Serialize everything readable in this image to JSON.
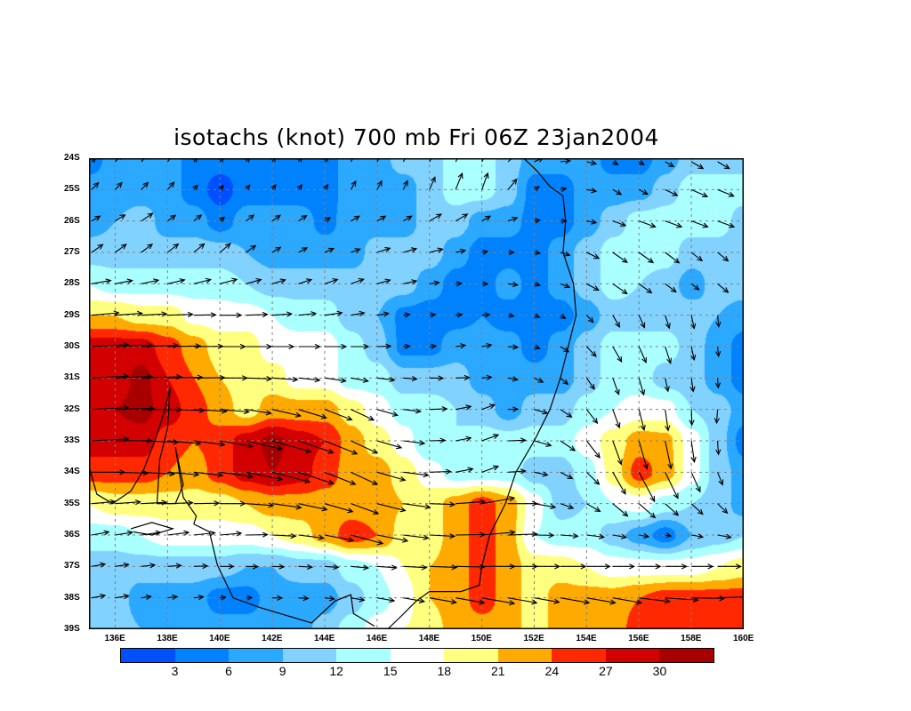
{
  "title": "isotachs (knot) 700 mb Fri 06Z 23jan2004",
  "chart_data": {
    "type": "heatmap",
    "title": "isotachs (knot) 700 mb Fri 06Z 23jan2004",
    "variable": "wind speed (knot)",
    "lon_range": [
      135,
      160
    ],
    "lat_range": [
      -24,
      -39
    ],
    "x_tick_labels": [
      "136E",
      "138E",
      "140E",
      "142E",
      "144E",
      "146E",
      "148E",
      "150E",
      "152E",
      "154E",
      "156E",
      "158E",
      "160E"
    ],
    "y_tick_labels": [
      "24S",
      "25S",
      "26S",
      "27S",
      "28S",
      "29S",
      "30S",
      "31S",
      "32S",
      "33S",
      "34S",
      "35S",
      "36S",
      "37S",
      "38S",
      "39S"
    ],
    "grid": true,
    "colorbar": {
      "levels": [
        3,
        6,
        9,
        12,
        15,
        18,
        21,
        24,
        27,
        30
      ],
      "labels": [
        "3",
        "6",
        "9",
        "12",
        "15",
        "18",
        "21",
        "24",
        "27",
        "30"
      ],
      "colors": [
        "#0050ff",
        "#0082ff",
        "#2ba8ff",
        "#82d2ff",
        "#aaffff",
        "#ffffff",
        "#ffff80",
        "#ffaa00",
        "#ff2800",
        "#d20000",
        "#a80000"
      ]
    },
    "speed_grid_lons": [
      135,
      136,
      137,
      138,
      139,
      140,
      141,
      142,
      143,
      144,
      145,
      146,
      147,
      148,
      149,
      150,
      151,
      152,
      153,
      154,
      155,
      156,
      157,
      158,
      159,
      160
    ],
    "speed_grid_lats": [
      24,
      25,
      26,
      27,
      28,
      29,
      30,
      31,
      32,
      33,
      34,
      35,
      36,
      37,
      38,
      39
    ],
    "speed_grid": [
      [
        4.5,
        7.5,
        7.5,
        7.5,
        4.5,
        4.5,
        4.5,
        4.5,
        4.5,
        4.5,
        7.5,
        7.5,
        10.5,
        10.5,
        13.5,
        13.5,
        10.5,
        7.5,
        7.5,
        7.5,
        4.5,
        4.5,
        7.5,
        10.5,
        10.5,
        10.5
      ],
      [
        7.5,
        7.5,
        7.5,
        7.5,
        4.5,
        1.5,
        4.5,
        4.5,
        4.5,
        4.5,
        7.5,
        7.5,
        7.5,
        10.5,
        13.5,
        13.5,
        10.5,
        4.5,
        4.5,
        7.5,
        7.5,
        7.5,
        10.5,
        13.5,
        13.5,
        13.5
      ],
      [
        7.5,
        9,
        10.5,
        7.5,
        7.5,
        4.5,
        7.5,
        7.5,
        7.5,
        5,
        7.5,
        7.5,
        7.5,
        10.5,
        10.5,
        7.5,
        7.5,
        4.5,
        4.5,
        7.5,
        10.5,
        13.5,
        13.5,
        13.5,
        13.5,
        10.5
      ],
      [
        10.5,
        10.5,
        10.5,
        10.5,
        10.5,
        10.5,
        9,
        7.5,
        7.5,
        7.5,
        7.5,
        10.5,
        10.5,
        10.5,
        7.5,
        4.5,
        4.5,
        4.5,
        7.5,
        10.5,
        13.5,
        13.5,
        13.5,
        10.5,
        10.5,
        9
      ],
      [
        15,
        13.5,
        13.5,
        13.5,
        13.5,
        13.5,
        12,
        10.5,
        10.5,
        10.5,
        10.5,
        10.5,
        10.5,
        7.5,
        4.5,
        4.5,
        7.5,
        4.5,
        7.5,
        10.5,
        13.5,
        12,
        10.5,
        7.5,
        10.5,
        10.5
      ],
      [
        21,
        21,
        19.5,
        19.5,
        17,
        16.5,
        16.5,
        15,
        13.5,
        13.5,
        10.5,
        9,
        5,
        4.5,
        5,
        6,
        4.5,
        4.5,
        4.5,
        7.5,
        10.5,
        10.5,
        10.5,
        10.5,
        9,
        7.5
      ],
      [
        28.5,
        28.5,
        28.5,
        25.5,
        22.5,
        19.5,
        19.5,
        16.5,
        16.5,
        16.5,
        13.5,
        10.5,
        5,
        5,
        7.5,
        7.5,
        7.5,
        4.5,
        7.5,
        10.5,
        13.5,
        13.5,
        13.5,
        10.5,
        7.5,
        4.5
      ],
      [
        28.5,
        28.5,
        31,
        27,
        24,
        21,
        19.5,
        19.5,
        16.5,
        16.5,
        13.5,
        13.5,
        10.5,
        10.5,
        10.5,
        7.5,
        7.5,
        7.5,
        7.5,
        10.5,
        13.5,
        13.5,
        10.5,
        10.5,
        7.5,
        4.5
      ],
      [
        28.5,
        30,
        31,
        28.5,
        25.5,
        22.5,
        19.5,
        22.5,
        22.5,
        22.5,
        19.5,
        16.5,
        13.5,
        13.5,
        12,
        10.5,
        7.5,
        10.5,
        10.5,
        13.5,
        15,
        16.5,
        16.5,
        12,
        10.5,
        7.5
      ],
      [
        28.5,
        28.5,
        28.5,
        25.5,
        24,
        25.5,
        28.5,
        31,
        28.5,
        27,
        22.5,
        19.5,
        16.5,
        12,
        12,
        13.5,
        13.5,
        13.5,
        13.5,
        16.5,
        19.5,
        22.5,
        22,
        16.5,
        10.5,
        4.5
      ],
      [
        25.5,
        25.5,
        25.5,
        24,
        22.5,
        25.5,
        28.5,
        30,
        28.5,
        25.5,
        22.5,
        22.5,
        19.5,
        16.5,
        13.5,
        13.5,
        13.5,
        10.5,
        10.5,
        13.5,
        19.5,
        25.5,
        22.5,
        16.5,
        10.5,
        7.5
      ],
      [
        18,
        19.5,
        19.5,
        19.5,
        19.5,
        19.5,
        21,
        22.5,
        22.5,
        22.5,
        22.5,
        22.5,
        21,
        19.5,
        22.5,
        25.5,
        22.5,
        16.5,
        10.5,
        12,
        15,
        16.5,
        13.5,
        12,
        10.5,
        7.5
      ],
      [
        13.5,
        13.5,
        15,
        16.5,
        16.5,
        16.5,
        16.5,
        18,
        19.5,
        22.5,
        25.5,
        24,
        19.5,
        19.5,
        22.5,
        25.5,
        22.5,
        15,
        13.5,
        13.5,
        10.5,
        7.5,
        4.5,
        9,
        10.5,
        12
      ],
      [
        10.5,
        10.5,
        10.5,
        10.5,
        10.5,
        10.5,
        9,
        9,
        10.5,
        10.5,
        13.5,
        15,
        18,
        21,
        22.5,
        25.5,
        22.5,
        19.5,
        19.5,
        18,
        16.5,
        16.5,
        16.5,
        16.5,
        18,
        19.5
      ],
      [
        10.5,
        10.5,
        7.5,
        7.5,
        7.5,
        4.5,
        4.5,
        7.5,
        7.5,
        7.5,
        10.5,
        13.5,
        16.5,
        21,
        22.5,
        25.5,
        22.5,
        19.5,
        22.5,
        22.5,
        22.5,
        24,
        25.5,
        25.5,
        25.5,
        25.5
      ],
      [
        12,
        10.5,
        9,
        7.5,
        7.5,
        7.5,
        7.5,
        7.5,
        7.5,
        10.5,
        13.5,
        16.5,
        18,
        19.5,
        22.5,
        22.5,
        22.5,
        19.5,
        22.5,
        22.5,
        22.5,
        25.5,
        25.5,
        25.5,
        27,
        25.5
      ]
    ],
    "wind_direction_lons": [
      135,
      140,
      145,
      150,
      155,
      160
    ],
    "wind_direction_deg_toward_ccw_from_east": [
      [
        45,
        55,
        60,
        60,
        -30,
        -30
      ],
      [
        45,
        50,
        60,
        70,
        -30,
        -20
      ],
      [
        30,
        40,
        30,
        30,
        -20,
        -20
      ],
      [
        35,
        40,
        20,
        10,
        -35,
        -40
      ],
      [
        10,
        15,
        20,
        0,
        -35,
        -40
      ],
      [
        5,
        0,
        10,
        5,
        -60,
        -90
      ],
      [
        3,
        0,
        0,
        10,
        -60,
        -90
      ],
      [
        3,
        0,
        -10,
        5,
        -70,
        -90
      ],
      [
        3,
        -5,
        -25,
        20,
        -70,
        -100
      ],
      [
        3,
        -10,
        -25,
        20,
        -70,
        -90
      ],
      [
        0,
        -8,
        -25,
        20,
        -60,
        -70
      ],
      [
        5,
        0,
        -20,
        10,
        -40,
        -45
      ],
      [
        10,
        5,
        -15,
        5,
        -10,
        -10
      ],
      [
        10,
        0,
        -5,
        0,
        0,
        0
      ],
      [
        10,
        5,
        -10,
        -10,
        -10,
        5
      ]
    ],
    "coastlines": [
      [
        [
          151.6,
          24
        ],
        [
          152.1,
          24.4
        ],
        [
          152.6,
          24.9
        ],
        [
          153.1,
          25.2
        ],
        [
          153.2,
          26
        ],
        [
          153.1,
          27
        ],
        [
          153.5,
          28
        ],
        [
          153.6,
          29
        ],
        [
          153.3,
          30
        ],
        [
          153.0,
          31
        ],
        [
          152.6,
          32
        ],
        [
          152.0,
          33
        ],
        [
          151.3,
          34
        ],
        [
          150.9,
          35
        ],
        [
          150.3,
          36
        ],
        [
          150.0,
          37
        ],
        [
          149.9,
          37.6
        ],
        [
          149.2,
          37.8
        ],
        [
          148.0,
          37.8
        ],
        [
          147.5,
          38.1
        ],
        [
          146.9,
          38.6
        ],
        [
          146.4,
          39
        ]
      ],
      [
        [
          139.0,
          35.65
        ],
        [
          139.6,
          35.9
        ],
        [
          139.9,
          36.95
        ],
        [
          140.5,
          38.0
        ],
        [
          141.5,
          38.3
        ],
        [
          143.5,
          38.8
        ],
        [
          144.4,
          38.1
        ],
        [
          145.0,
          37.9
        ],
        [
          145.1,
          38.5
        ],
        [
          145.9,
          38.9
        ]
      ],
      [
        [
          135.0,
          33.8
        ],
        [
          135.3,
          34.7
        ],
        [
          135.9,
          35.0
        ],
        [
          136.6,
          34.6
        ],
        [
          137.1,
          33.9
        ],
        [
          137.6,
          32.8
        ],
        [
          137.9,
          32.0
        ],
        [
          138.1,
          31.3
        ],
        [
          138.0,
          32.6
        ],
        [
          137.7,
          33.6
        ],
        [
          137.6,
          35.0
        ],
        [
          138.3,
          35.0
        ],
        [
          138.6,
          34.4
        ],
        [
          138.3,
          33.2
        ],
        [
          138.6,
          34.8
        ],
        [
          139.1,
          35.4
        ],
        [
          139.0,
          35.65
        ]
      ],
      [
        [
          136.6,
          35.8
        ],
        [
          137.4,
          35.6
        ],
        [
          138.2,
          35.8
        ],
        [
          137.4,
          36.0
        ],
        [
          136.7,
          35.9
        ]
      ]
    ]
  }
}
